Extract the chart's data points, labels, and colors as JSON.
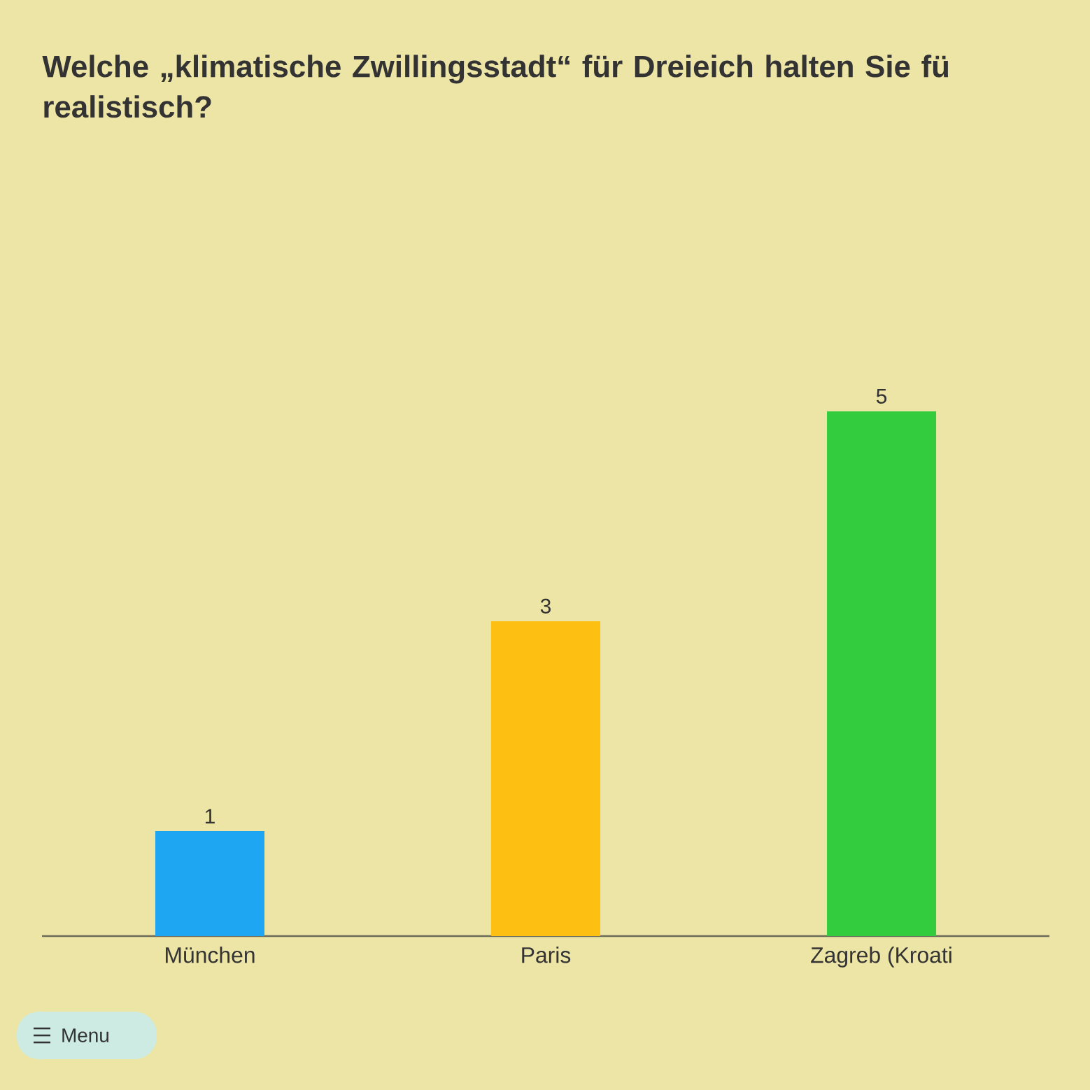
{
  "chart_data": {
    "type": "bar",
    "title": "Welche „klimatische Zwillingsstadt“ für Dreieich halten Sie fü realistisch?",
    "categories": [
      "München",
      "Paris",
      "Zagreb (Kroati"
    ],
    "values": [
      1,
      3,
      5
    ],
    "colors": [
      "#1ea6f2",
      "#fdbf12",
      "#33cc3f"
    ],
    "data_labels": true,
    "annotations": [
      "Menu"
    ]
  }
}
